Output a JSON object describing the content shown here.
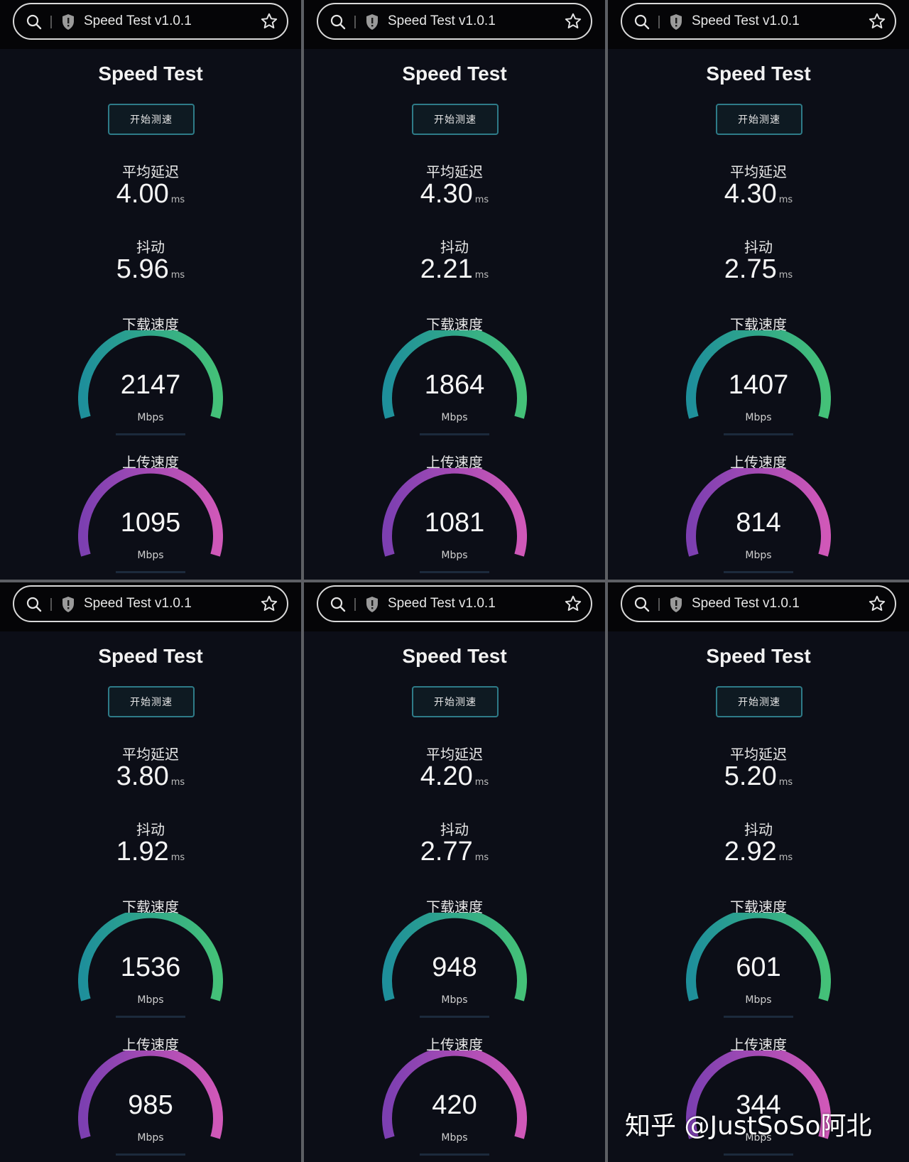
{
  "colors": {
    "download_gauge_start": "#1e8f9b",
    "download_gauge_end": "#44c178",
    "upload_gauge_start": "#7c3fb1",
    "upload_gauge_end": "#d058b8",
    "button_border": "#2e7b88"
  },
  "icons": {
    "search": "search-icon",
    "shield": "shield-icon",
    "star": "star-icon"
  },
  "panels": [
    {
      "url": "Speed Test v1.0.1",
      "title": "Speed Test",
      "start_button": "开始测速",
      "latency_label": "平均延迟",
      "latency_value": "4.00",
      "latency_unit": "ms",
      "jitter_label": "抖动",
      "jitter_value": "5.96",
      "jitter_unit": "ms",
      "download_label": "下载速度",
      "download_value": "2147",
      "download_unit": "Mbps",
      "upload_label": "上传速度",
      "upload_value": "1095",
      "upload_unit": "Mbps"
    },
    {
      "url": "Speed Test v1.0.1",
      "title": "Speed Test",
      "start_button": "开始测速",
      "latency_label": "平均延迟",
      "latency_value": "4.30",
      "latency_unit": "ms",
      "jitter_label": "抖动",
      "jitter_value": "2.21",
      "jitter_unit": "ms",
      "download_label": "下载速度",
      "download_value": "1864",
      "download_unit": "Mbps",
      "upload_label": "上传速度",
      "upload_value": "1081",
      "upload_unit": "Mbps"
    },
    {
      "url": "Speed Test v1.0.1",
      "title": "Speed Test",
      "start_button": "开始测速",
      "latency_label": "平均延迟",
      "latency_value": "4.30",
      "latency_unit": "ms",
      "jitter_label": "抖动",
      "jitter_value": "2.75",
      "jitter_unit": "ms",
      "download_label": "下载速度",
      "download_value": "1407",
      "download_unit": "Mbps",
      "upload_label": "上传速度",
      "upload_value": "814",
      "upload_unit": "Mbps"
    },
    {
      "url": "Speed Test v1.0.1",
      "title": "Speed Test",
      "start_button": "开始测速",
      "latency_label": "平均延迟",
      "latency_value": "3.80",
      "latency_unit": "ms",
      "jitter_label": "抖动",
      "jitter_value": "1.92",
      "jitter_unit": "ms",
      "download_label": "下载速度",
      "download_value": "1536",
      "download_unit": "Mbps",
      "upload_label": "上传速度",
      "upload_value": "985",
      "upload_unit": "Mbps"
    },
    {
      "url": "Speed Test v1.0.1",
      "title": "Speed Test",
      "start_button": "开始测速",
      "latency_label": "平均延迟",
      "latency_value": "4.20",
      "latency_unit": "ms",
      "jitter_label": "抖动",
      "jitter_value": "2.77",
      "jitter_unit": "ms",
      "download_label": "下载速度",
      "download_value": "948",
      "download_unit": "Mbps",
      "upload_label": "上传速度",
      "upload_value": "420",
      "upload_unit": "Mbps"
    },
    {
      "url": "Speed Test v1.0.1",
      "title": "Speed Test",
      "start_button": "开始测速",
      "latency_label": "平均延迟",
      "latency_value": "5.20",
      "latency_unit": "ms",
      "jitter_label": "抖动",
      "jitter_value": "2.92",
      "jitter_unit": "ms",
      "download_label": "下载速度",
      "download_value": "601",
      "download_unit": "Mbps",
      "upload_label": "上传速度",
      "upload_value": "344",
      "upload_unit": "Mbps"
    }
  ],
  "watermark": "知乎 @JustSoSo阿北"
}
